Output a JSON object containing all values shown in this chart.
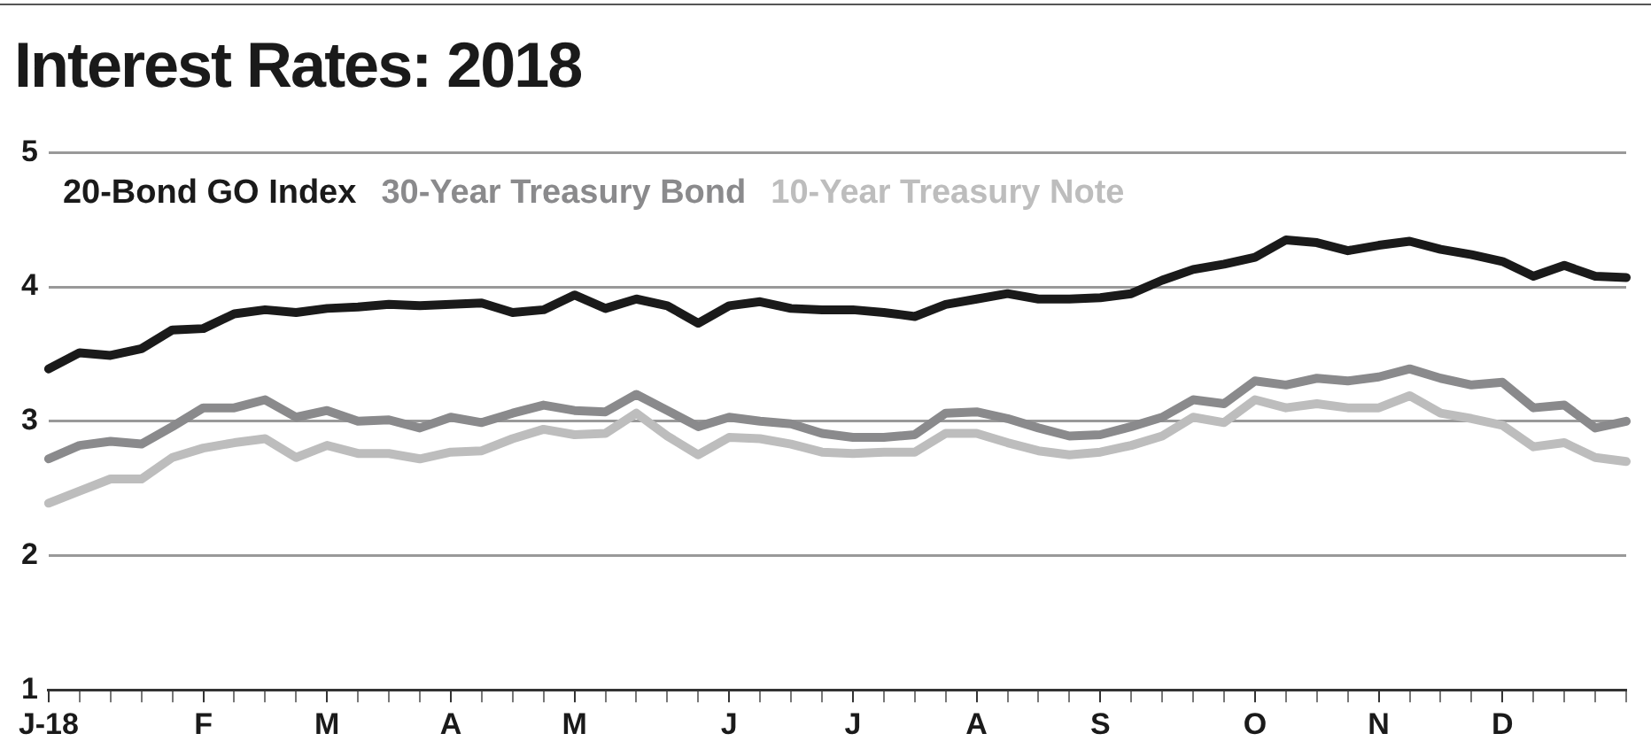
{
  "chart_data": {
    "type": "line",
    "title": "Interest Rates: 2018",
    "categories": [
      "J-18",
      null,
      null,
      null,
      null,
      "F",
      null,
      null,
      null,
      "M",
      null,
      null,
      null,
      "A",
      null,
      null,
      null,
      "M",
      null,
      null,
      null,
      null,
      "J",
      null,
      null,
      null,
      "J",
      null,
      null,
      null,
      "A",
      null,
      null,
      null,
      "S",
      null,
      null,
      null,
      null,
      "O",
      null,
      null,
      null,
      "N",
      null,
      null,
      null,
      "D",
      null,
      null,
      null,
      null
    ],
    "series": [
      {
        "name": "20-Bond GO Index",
        "color": "#1a1a1a",
        "values": [
          3.39,
          3.51,
          3.49,
          3.54,
          3.68,
          3.69,
          3.8,
          3.83,
          3.81,
          3.84,
          3.85,
          3.87,
          3.86,
          3.87,
          3.88,
          3.81,
          3.83,
          3.94,
          3.84,
          3.91,
          3.86,
          3.73,
          3.86,
          3.89,
          3.84,
          3.83,
          3.83,
          3.81,
          3.78,
          3.87,
          3.91,
          3.95,
          3.91,
          3.91,
          3.92,
          3.95,
          4.05,
          4.13,
          4.17,
          4.22,
          4.35,
          4.33,
          4.27,
          4.31,
          4.34,
          4.28,
          4.24,
          4.19,
          4.08,
          4.16,
          4.08,
          4.07
        ]
      },
      {
        "name": "30-Year Treasury Bond",
        "color": "#8a8a8c",
        "values": [
          2.72,
          2.82,
          2.85,
          2.83,
          2.96,
          3.1,
          3.1,
          3.16,
          3.03,
          3.08,
          3.0,
          3.01,
          2.95,
          3.03,
          2.99,
          3.06,
          3.12,
          3.08,
          3.07,
          3.2,
          3.08,
          2.96,
          3.03,
          3.0,
          2.98,
          2.91,
          2.88,
          2.88,
          2.9,
          3.06,
          3.07,
          3.02,
          2.95,
          2.89,
          2.9,
          2.96,
          3.03,
          3.16,
          3.13,
          3.3,
          3.27,
          3.32,
          3.3,
          3.33,
          3.39,
          3.32,
          3.27,
          3.29,
          3.1,
          3.12,
          2.95,
          3.0
        ]
      },
      {
        "name": "10-Year Treasury Note",
        "color": "#bdbdbd",
        "values": [
          2.39,
          2.48,
          2.57,
          2.57,
          2.73,
          2.8,
          2.84,
          2.87,
          2.73,
          2.82,
          2.76,
          2.76,
          2.72,
          2.77,
          2.78,
          2.87,
          2.94,
          2.9,
          2.91,
          3.06,
          2.89,
          2.75,
          2.88,
          2.87,
          2.83,
          2.77,
          2.76,
          2.77,
          2.77,
          2.91,
          2.91,
          2.84,
          2.78,
          2.75,
          2.77,
          2.82,
          2.89,
          3.03,
          2.99,
          3.16,
          3.1,
          3.13,
          3.1,
          3.1,
          3.19,
          3.06,
          3.02,
          2.97,
          2.81,
          2.84,
          2.73,
          2.7
        ]
      }
    ],
    "ylim": [
      1,
      5
    ],
    "yticks": [
      1,
      2,
      3,
      4,
      5
    ],
    "grid": "y",
    "legend": "top left",
    "marker": "none",
    "line_style": "solid"
  }
}
